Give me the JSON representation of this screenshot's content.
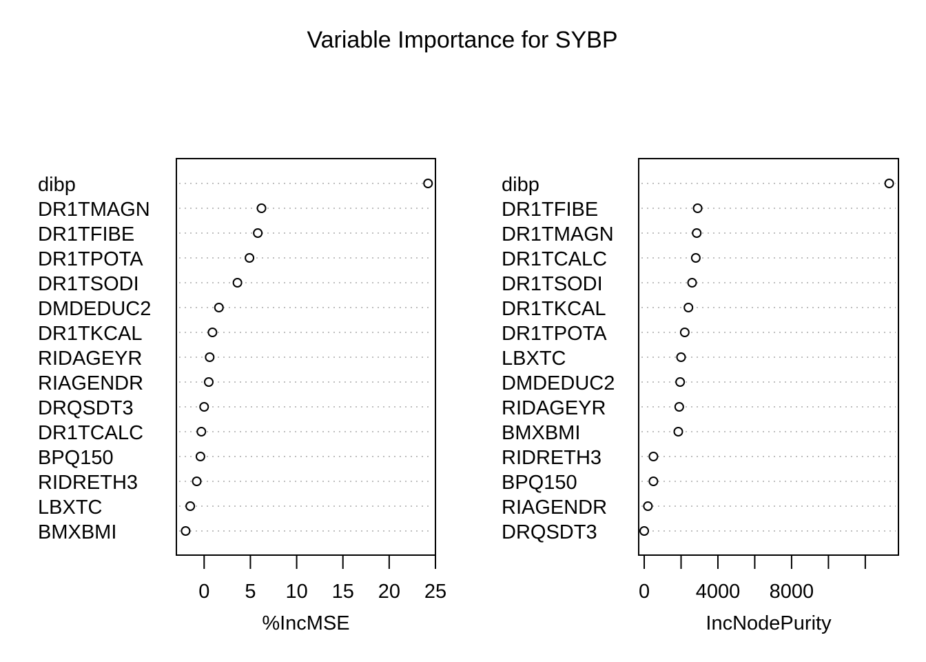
{
  "figure": {
    "title": "Variable Importance for SYBP"
  },
  "chart_data": [
    {
      "type": "scatter",
      "subtype": "dotchart",
      "xlabel": "%IncMSE",
      "xlim": [
        -3,
        25
      ],
      "xticks": [
        0,
        5,
        10,
        15,
        20,
        25
      ],
      "xtick_labels": [
        "0",
        "5",
        "10",
        "15",
        "20",
        "25"
      ],
      "grid": "dotted horizontal guide per variable",
      "categories": [
        "dibp",
        "DR1TMAGN",
        "DR1TFIBE",
        "DR1TPOTA",
        "DR1TSODI",
        "DMDEDUC2",
        "DR1TKCAL",
        "RIDAGEYR",
        "RIAGENDR",
        "DRQSDT3",
        "DR1TCALC",
        "BPQ150",
        "RIDRETH3",
        "LBXTC",
        "BMXBMI"
      ],
      "values": [
        24.2,
        6.2,
        5.8,
        4.9,
        3.6,
        1.6,
        0.9,
        0.6,
        0.5,
        0.0,
        -0.3,
        -0.4,
        -0.8,
        -1.5,
        -2.0
      ]
    },
    {
      "type": "scatter",
      "subtype": "dotchart",
      "xlabel": "IncNodePurity",
      "xlim": [
        -300,
        13800
      ],
      "xticks": [
        0,
        2000,
        4000,
        6000,
        8000,
        10000,
        12000
      ],
      "xtick_labels": [
        "0",
        "",
        "4000",
        "",
        "8000",
        "",
        ""
      ],
      "grid": "dotted horizontal guide per variable",
      "categories": [
        "dibp",
        "DR1TFIBE",
        "DR1TMAGN",
        "DR1TCALC",
        "DR1TSODI",
        "DR1TKCAL",
        "DR1TPOTA",
        "LBXTC",
        "DMDEDUC2",
        "RIDAGEYR",
        "BMXBMI",
        "RIDRETH3",
        "BPQ150",
        "RIAGENDR",
        "DRQSDT3"
      ],
      "values": [
        13300,
        2900,
        2850,
        2800,
        2600,
        2400,
        2200,
        2000,
        1950,
        1900,
        1850,
        500,
        500,
        200,
        0
      ]
    }
  ]
}
